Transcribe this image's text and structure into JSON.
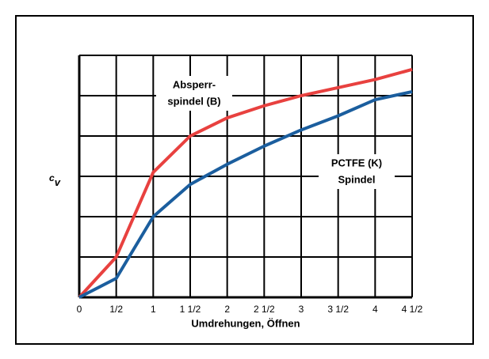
{
  "chart_data": {
    "type": "line",
    "ylabel": {
      "main": "c",
      "sub": "v"
    },
    "xlabel": "Umdrehungen, Öffnen",
    "x": [
      0,
      0.5,
      1,
      1.5,
      2,
      2.5,
      3,
      3.5,
      4,
      4.5
    ],
    "series": [
      {
        "name": "Absperrspindel (B)",
        "color": "#e8413f",
        "values": [
          0,
          1.0,
          3.1,
          4.0,
          4.45,
          4.75,
          5.0,
          5.2,
          5.4,
          5.65
        ]
      },
      {
        "name": "PCTFE (K) Spindel",
        "color": "#1b5e9e",
        "values": [
          0,
          0.47,
          2.0,
          2.8,
          3.3,
          3.75,
          4.15,
          4.5,
          4.9,
          5.1
        ]
      }
    ],
    "annotations": [
      {
        "lines": [
          "Absperr-",
          "spindel (B)"
        ]
      },
      {
        "lines": [
          "PCTFE (K)",
          "Spindel"
        ]
      }
    ],
    "xlim": [
      0,
      4.5
    ],
    "xticks": [
      0,
      {
        "value": 0.5,
        "label": "1/2"
      },
      1,
      {
        "value": 1.5,
        "label": "1 1/2"
      },
      2,
      {
        "value": 2.5,
        "label": "2 1/2"
      },
      3,
      {
        "value": 3.5,
        "label": "3 1/2"
      },
      4,
      {
        "value": 4.5,
        "label": "4 1/2"
      }
    ],
    "ylim": [
      0,
      6
    ],
    "yticks": [
      0,
      1,
      2,
      3,
      4,
      5,
      6
    ],
    "grid": true
  }
}
